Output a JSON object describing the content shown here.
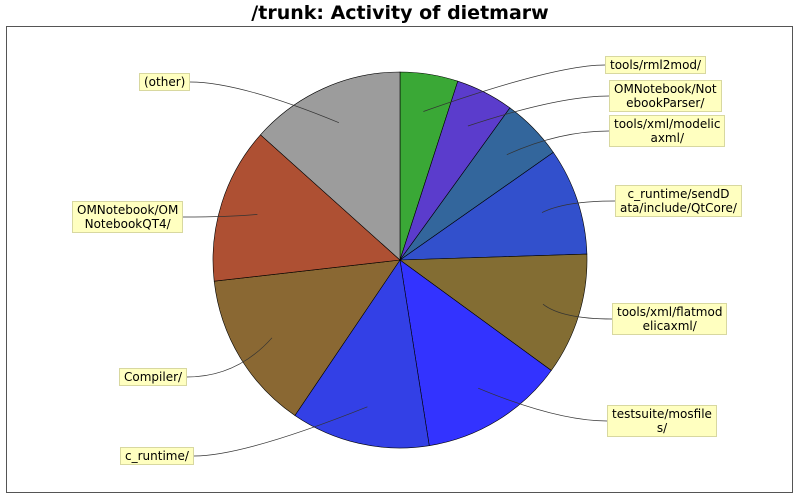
{
  "chart_data": {
    "type": "pie",
    "title": "/trunk: Activity of dietmarw",
    "categories": [
      "tools/rml2mod/",
      "OMNotebook/NotebookParser/",
      "tools/xml/modelicaxml/",
      "c_runtime/sendData/include/QtCore/",
      "tools/xml/flatmodelicaxml/",
      "testsuite/mosfiles/",
      "c_runtime/",
      "Compiler/",
      "OMNotebook/OMNotebookQT4/",
      "(other)"
    ],
    "display_labels": [
      "tools/rml2mod/",
      "OMNotebook/Not\nebookParser/",
      "tools/xml/modelic\naxml/",
      "c_runtime/sendD\nata/include/QtCore/",
      "tools/xml/flatmod\nelicaxml/",
      "testsuite/mosfile\ns/",
      "c_runtime/",
      "Compiler/",
      "OMNotebook/OM\nNotebookQT4/",
      "(other)"
    ],
    "values": [
      5.0,
      5.0,
      5.3,
      9.2,
      10.5,
      12.5,
      12.0,
      13.7,
      13.4,
      13.4
    ],
    "colors": [
      "#3aa836",
      "#5b3ccc",
      "#33669c",
      "#3250cc",
      "#836d33",
      "#3333ff",
      "#3340e6",
      "#8a6833",
      "#ae5033",
      "#9c9c9c"
    ],
    "start_angle_deg": 0,
    "direction": "clockwise"
  }
}
